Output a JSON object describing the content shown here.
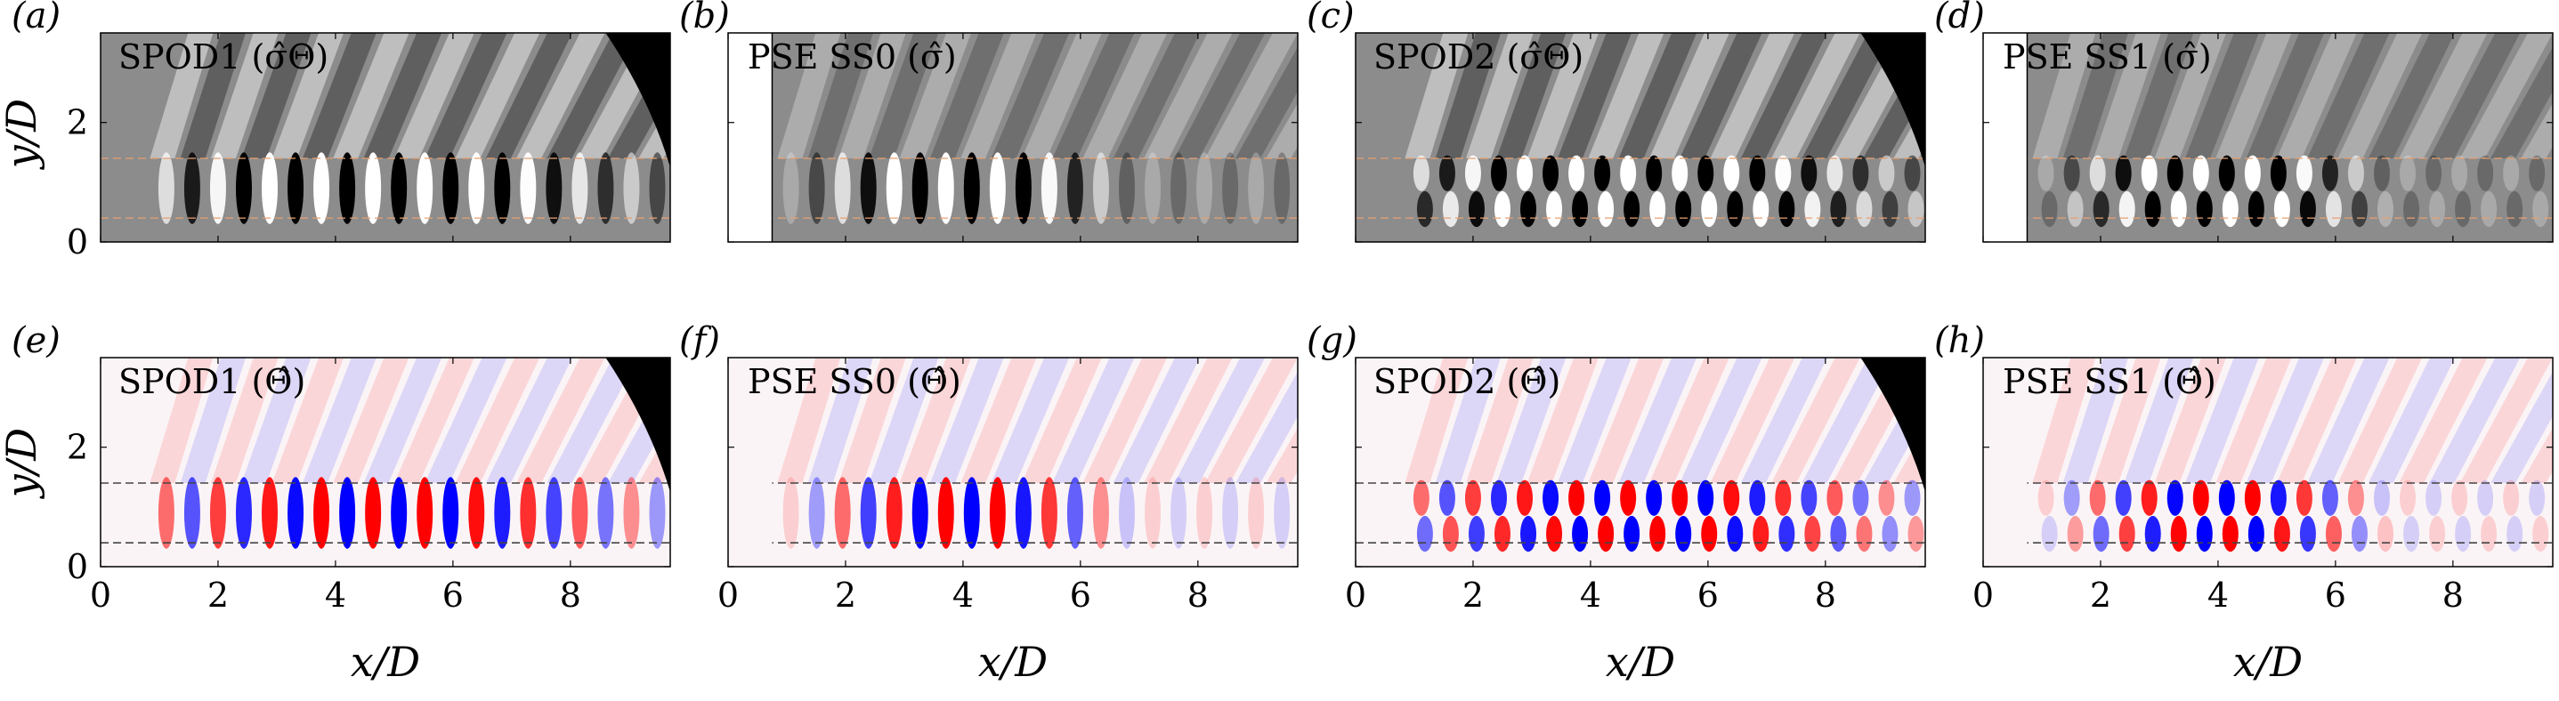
{
  "figure": {
    "panels": [
      {
        "id": "a",
        "label": "(a)",
        "title": "SPOD1 (σ̂Θ)",
        "kind": "schlieren",
        "mode": "single",
        "show_x_ticks": false,
        "show_y_ticks": true
      },
      {
        "id": "b",
        "label": "(b)",
        "title": "PSE SS0 (σ̂)",
        "kind": "schlieren",
        "mode": "single",
        "show_x_ticks": false,
        "show_y_ticks": false
      },
      {
        "id": "c",
        "label": "(c)",
        "title": "SPOD2 (σ̂Θ)",
        "kind": "schlieren",
        "mode": "double",
        "show_x_ticks": false,
        "show_y_ticks": false
      },
      {
        "id": "d",
        "label": "(d)",
        "title": "PSE SS1 (σ̂)",
        "kind": "schlieren",
        "mode": "double",
        "show_x_ticks": false,
        "show_y_ticks": false
      },
      {
        "id": "e",
        "label": "(e)",
        "title": "SPOD1 (Θ̂)",
        "kind": "color",
        "mode": "single",
        "show_x_ticks": true,
        "show_y_ticks": true
      },
      {
        "id": "f",
        "label": "(f)",
        "title": "PSE SS0 (Θ̂)",
        "kind": "color",
        "mode": "single",
        "show_x_ticks": true,
        "show_y_ticks": false
      },
      {
        "id": "g",
        "label": "(g)",
        "title": "SPOD2 (Θ̂)",
        "kind": "color",
        "mode": "double",
        "show_x_ticks": true,
        "show_y_ticks": false
      },
      {
        "id": "h",
        "label": "(h)",
        "title": "PSE SS1 (Θ̂)",
        "kind": "color",
        "mode": "double",
        "show_x_ticks": true,
        "show_y_ticks": false
      }
    ],
    "x_axis": {
      "label": "x/D",
      "range": [
        0,
        9.7
      ],
      "ticks": [
        0,
        2,
        4,
        6,
        8
      ]
    },
    "y_axis": {
      "label": "y/D",
      "range": [
        0,
        3.5
      ],
      "ticks": [
        0,
        2
      ]
    },
    "dashed_lines_y": [
      0.4,
      1.4
    ],
    "colors": {
      "positive": "#ff0000",
      "negative": "#0000ff",
      "neutral": "#ffffff",
      "schlieren_bg": "#8c8c8c"
    }
  }
}
